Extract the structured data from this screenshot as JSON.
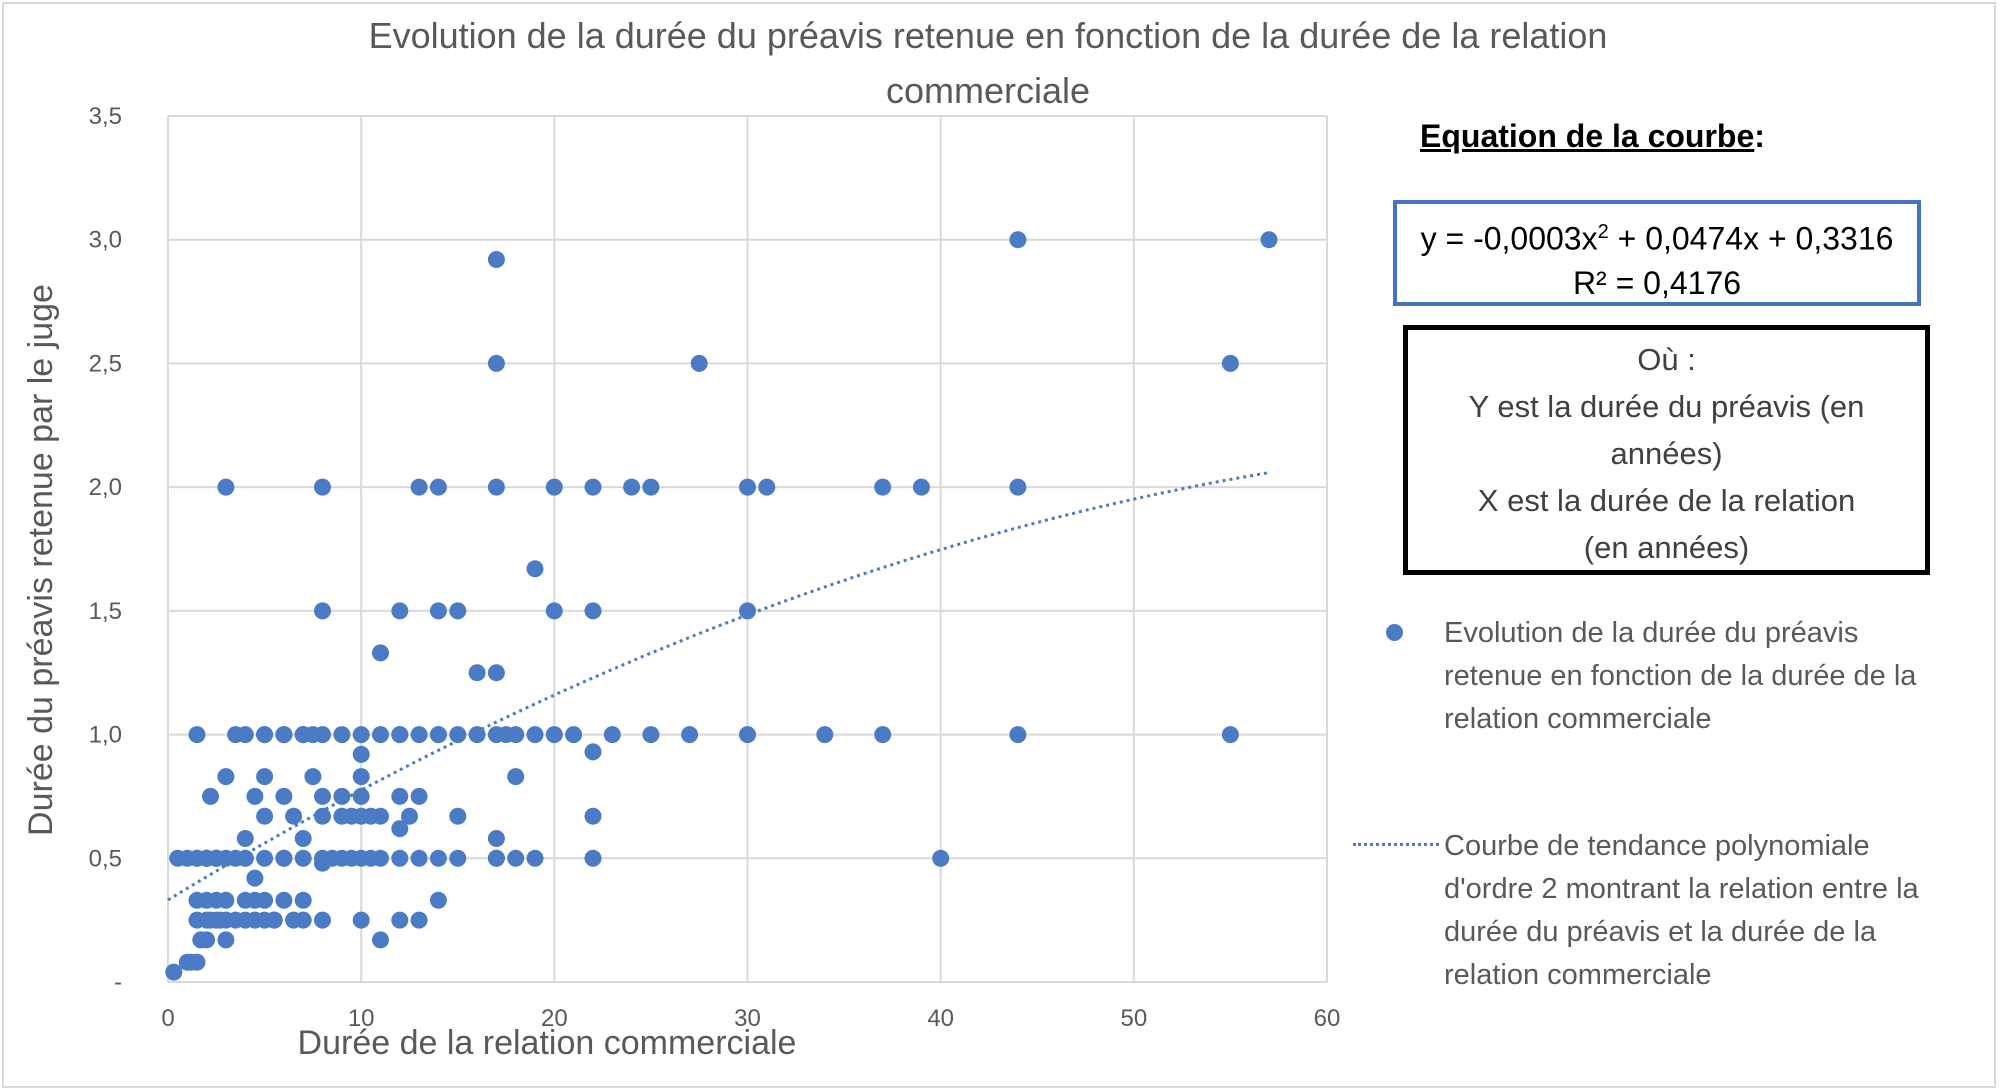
{
  "chart_data": {
    "type": "scatter",
    "title": "Evolution de la durée du préavis retenue en fonction de la durée de la relation commerciale",
    "title_lines": [
      "Evolution de la durée du préavis retenue en fonction de la durée de la relation",
      "commerciale"
    ],
    "xlabel": "Durée de la relation commerciale",
    "ylabel": "Durée du préavis retenue par le juge",
    "xlim": [
      0,
      60
    ],
    "ylim": [
      0,
      3.5
    ],
    "x_ticks": [
      "0",
      "10",
      "20",
      "30",
      "40",
      "50",
      "60"
    ],
    "y_ticks": [
      "-",
      "0,5",
      "1,0",
      "1,5",
      "2,0",
      "2,5",
      "3,0",
      "3,5"
    ],
    "grid": true,
    "marker_color": "#4a7bc4",
    "series": [
      {
        "name": "Evolution de la durée du préavis retenue en fonction de la durée de la relation commerciale",
        "kind": "points",
        "x": [
          0.3,
          0.5,
          1,
          1,
          1.2,
          1.5,
          1.5,
          1.5,
          1.5,
          1.5,
          1.5,
          1.7,
          2,
          2,
          2,
          2,
          2,
          2,
          2.2,
          2.2,
          2.5,
          2.5,
          2.5,
          2.5,
          2.5,
          2.7,
          3,
          3,
          3,
          3,
          3,
          3,
          3.5,
          3.5,
          3.5,
          4,
          4,
          4,
          4,
          4,
          4,
          4.5,
          4.5,
          4.5,
          4.5,
          5,
          5,
          5,
          5,
          5,
          5,
          5,
          5.5,
          5.5,
          6,
          6,
          6,
          6,
          6,
          6,
          6.5,
          6.5,
          7,
          7,
          7,
          7,
          7,
          7,
          7,
          7.5,
          7.5,
          8,
          8,
          8,
          8,
          8,
          8,
          8,
          8,
          8.5,
          9,
          9,
          9,
          9,
          9.5,
          9.5,
          10,
          10,
          10,
          10,
          10,
          10,
          10,
          10.5,
          10.5,
          11,
          11,
          11,
          11,
          11,
          12,
          12,
          12,
          12,
          12,
          12,
          12,
          12.5,
          13,
          13,
          13,
          13,
          13,
          14,
          14,
          14,
          14,
          14,
          14,
          15,
          15,
          15,
          15,
          16,
          16,
          17,
          17,
          17,
          17,
          17,
          17,
          17,
          17,
          17.5,
          18,
          18,
          18,
          19,
          19,
          19,
          20,
          20,
          20,
          21,
          22,
          22,
          22,
          22,
          22,
          23,
          24,
          25,
          25,
          27,
          27.5,
          30,
          30,
          30,
          31,
          34,
          37,
          37,
          39,
          40,
          44,
          44,
          44,
          55,
          55,
          57
        ],
        "y": [
          0.04,
          0.5,
          0.08,
          0.5,
          0.08,
          0.08,
          0.25,
          0.33,
          0.5,
          0.5,
          1.0,
          0.17,
          0.25,
          0.33,
          0.5,
          0.5,
          0.17,
          0.5,
          0.75,
          0.25,
          0.25,
          0.33,
          0.5,
          0.5,
          0.5,
          0.25,
          0.17,
          0.25,
          0.33,
          0.5,
          0.83,
          2.0,
          0.25,
          0.5,
          1.0,
          0.25,
          0.33,
          0.5,
          0.5,
          0.58,
          1.0,
          0.25,
          0.33,
          0.75,
          0.42,
          0.25,
          0.33,
          0.5,
          0.67,
          0.83,
          1.0,
          1.0,
          0.25,
          0.25,
          0.33,
          0.5,
          0.5,
          0.75,
          1.0,
          1.0,
          0.25,
          0.67,
          0.25,
          0.33,
          0.5,
          0.58,
          1.0,
          1.0,
          1.0,
          0.83,
          1.0,
          0.25,
          0.48,
          0.5,
          0.67,
          0.75,
          1.0,
          1.5,
          2.0,
          0.5,
          0.5,
          0.67,
          0.75,
          1.0,
          0.5,
          0.67,
          0.25,
          0.5,
          0.67,
          0.75,
          0.83,
          0.92,
          1.0,
          0.5,
          0.67,
          0.17,
          0.5,
          0.67,
          1.0,
          1.33,
          0.25,
          0.5,
          0.62,
          0.75,
          1.0,
          1.0,
          1.5,
          0.67,
          0.25,
          0.5,
          0.75,
          1.0,
          2.0,
          0.33,
          0.5,
          1.0,
          1.0,
          1.5,
          2.0,
          0.5,
          0.67,
          1.0,
          1.5,
          1.0,
          1.25,
          0.5,
          0.5,
          0.58,
          1.0,
          1.25,
          2.0,
          2.5,
          2.92,
          1.0,
          0.5,
          0.83,
          1.0,
          0.5,
          1.0,
          1.67,
          1.0,
          1.5,
          2.0,
          1.0,
          0.5,
          0.67,
          0.93,
          1.5,
          2.0,
          1.0,
          2.0,
          1.0,
          2.0,
          1.0,
          2.5,
          1.0,
          1.5,
          2.0,
          2.0,
          1.0,
          1.0,
          2.0,
          2.0,
          0.5,
          1.0,
          2.0,
          3.0,
          1.0,
          2.5,
          3.0
        ]
      },
      {
        "name": "Courbe de tendance polynomiale d'ordre 2 montrant la relation entre la durée du préavis et la durée de la relation commerciale",
        "kind": "trendline",
        "style": "dotted",
        "equation": {
          "a": -0.0003,
          "b": 0.0474,
          "c": 0.3316
        },
        "x_range": [
          0,
          57
        ]
      }
    ]
  },
  "equation_panel": {
    "heading": "Equation de la courbe",
    "heading_suffix": " :",
    "line1_prefix": "y = -0,0003x",
    "line1_sup": "2",
    "line1_suffix": " + 0,0474x + 0,3316",
    "line2": "R² = 0,4176",
    "box_color": "#4472c4"
  },
  "where_panel": {
    "lines": [
      "Où :",
      "Y est la durée du préavis (en",
      "années)",
      "X est la durée de la relation",
      "(en années)"
    ]
  },
  "legend": {
    "points_lines": [
      "Evolution de la durée du préavis",
      "retenue en fonction de la durée de la",
      "relation commerciale"
    ],
    "trend_lines": [
      "Courbe de tendance polynomiale",
      "d'ordre 2 montrant la relation entre la",
      "durée du préavis et la durée de la",
      "relation commerciale"
    ]
  }
}
